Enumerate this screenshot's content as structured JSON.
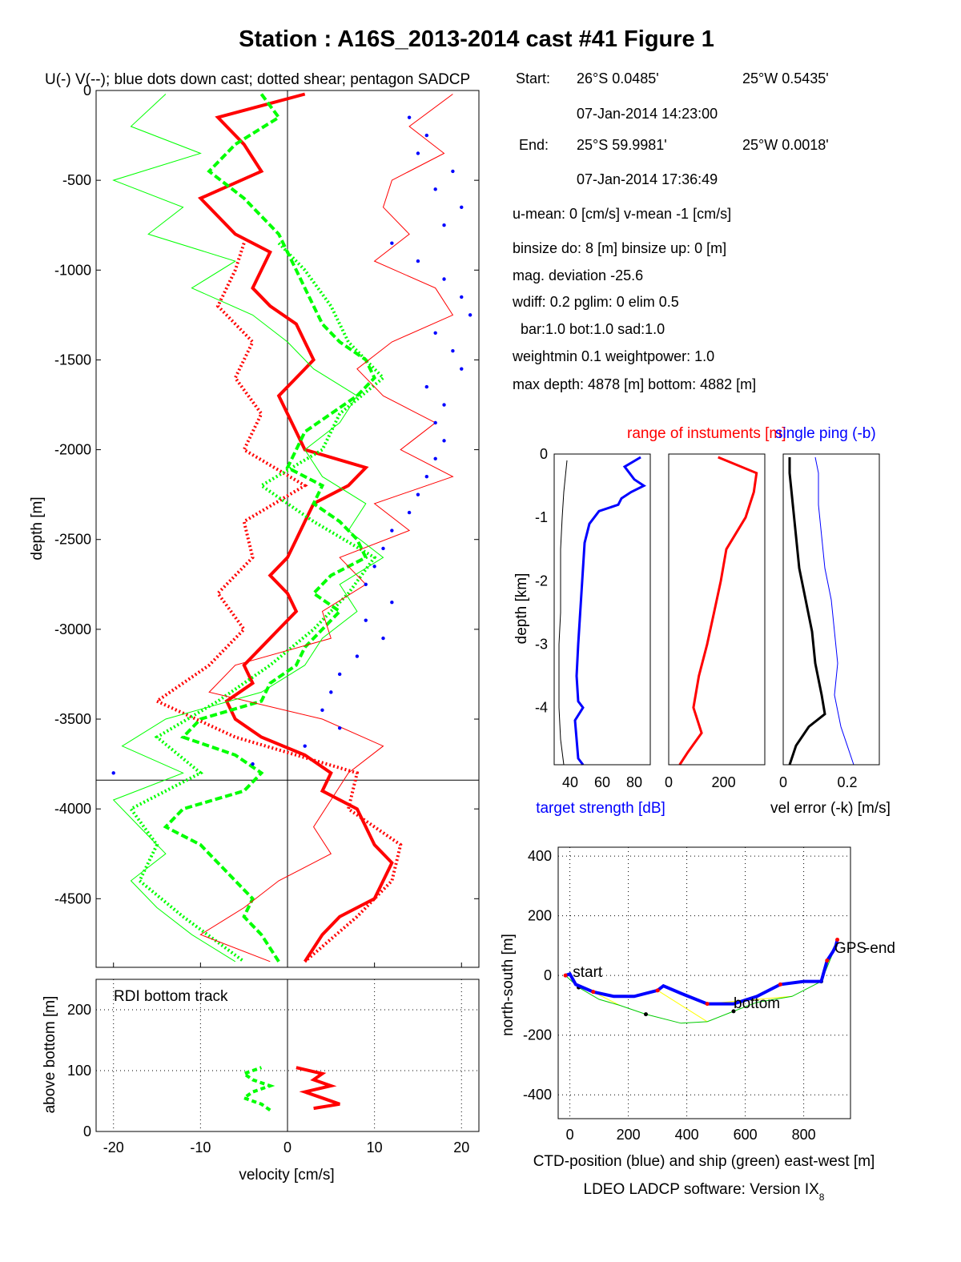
{
  "title": "Station : A16S_2013-2014 cast #41  Figure 1",
  "main_subtitle": "U(-) V(--); blue dots down cast; dotted shear; pentagon SADCP",
  "info": {
    "start_label": "Start:",
    "start_lat": "26°S  0.0485'",
    "start_lon": "25°W  0.5435'",
    "start_time": "07-Jan-2014 14:23:00",
    "end_label": "End:",
    "end_lat": "25°S 59.9981'",
    "end_lon": "25°W  0.0018'",
    "end_time": "07-Jan-2014 17:36:49",
    "line_mean": "u-mean:   0 [cm/s]    v-mean  -1 [cm/s]",
    "line_bins": "binsize do: 8 [m]  binsize up:  0 [m]",
    "line_mag": "mag. deviation -25.6",
    "line_wdiff": "wdiff: 0.2  pglim: 0  elim 0.5",
    "line_bar": "bar:1.0 bot:1.0 sad:1.0",
    "line_weight": "weightmin 0.1  weightpower: 1.0",
    "line_depth": "max depth: 4878 [m]   bottom: 4882 [m]"
  },
  "colors": {
    "u": "#ff0000",
    "v": "#00ff00",
    "downcast": "#0000ff",
    "ship": "#00cc00",
    "yellow": "#ffff00"
  },
  "chart_data": [
    {
      "type": "line",
      "panel": "velocity profile",
      "xlabel": "",
      "ylabel": "depth [m]",
      "xlim": [
        -22,
        22
      ],
      "ylim": [
        -4882,
        0
      ],
      "xticks": [
        "-20",
        "-10",
        "0",
        "10",
        "20"
      ],
      "yticks": [
        "0",
        "-500",
        "-1000",
        "-1500",
        "-2000",
        "-2500",
        "-3000",
        "-3500",
        "-4000",
        "-4500"
      ],
      "ytick_values": [
        0,
        -500,
        -1000,
        -1500,
        -2000,
        -2500,
        -3000,
        -3500,
        -4000,
        -4500
      ],
      "bottom_depth_line": -3840,
      "series": [
        {
          "key": "u",
          "color": "#ff0000",
          "depth": [
            -20,
            -150,
            -300,
            -450,
            -600,
            -700,
            -800,
            -900,
            -1000,
            -1100,
            -1200,
            -1300,
            -1400,
            -1500,
            -1600,
            -1700,
            -1800,
            -1900,
            -2000,
            -2100,
            -2200,
            -2300,
            -2400,
            -2500,
            -2600,
            -2700,
            -2800,
            -2900,
            -3000,
            -3100,
            -3200,
            -3300,
            -3400,
            -3500,
            -3600,
            -3700,
            -3800,
            -3900,
            -4000,
            -4100,
            -4200,
            -4300,
            -4400,
            -4500,
            -4600,
            -4700,
            -4850
          ],
          "values": [
            2,
            -8,
            -5,
            -3,
            -10,
            -8,
            -6,
            -2,
            -3,
            -4,
            -2,
            1,
            2,
            3,
            1,
            -1,
            0,
            1,
            2,
            9,
            7,
            3,
            2,
            1,
            0,
            -2,
            0,
            1,
            -1,
            -3,
            -5,
            -4,
            -7,
            -6,
            -3,
            2,
            5,
            4,
            8,
            9,
            10,
            12,
            11,
            10,
            6,
            4,
            2
          ]
        },
        {
          "key": "v",
          "color": "#00ff00",
          "depth": [
            -20,
            -150,
            -300,
            -450,
            -600,
            -700,
            -800,
            -900,
            -1000,
            -1100,
            -1200,
            -1300,
            -1400,
            -1500,
            -1600,
            -1700,
            -1800,
            -1900,
            -2000,
            -2100,
            -2200,
            -2300,
            -2400,
            -2500,
            -2600,
            -2700,
            -2800,
            -2900,
            -3000,
            -3100,
            -3200,
            -3300,
            -3400,
            -3500,
            -3600,
            -3700,
            -3800,
            -3900,
            -4000,
            -4100,
            -4200,
            -4300,
            -4400,
            -4500,
            -4600,
            -4700,
            -4850
          ],
          "values": [
            -3,
            -1,
            -6,
            -9,
            -5,
            -3,
            -1,
            0,
            1,
            2,
            3,
            4,
            6,
            9,
            10,
            8,
            5,
            2,
            1,
            0,
            4,
            3,
            6,
            8,
            9,
            5,
            3,
            6,
            4,
            2,
            1,
            -2,
            -3,
            -10,
            -12,
            -6,
            -3,
            -5,
            -12,
            -14,
            -10,
            -8,
            -6,
            -4,
            -5,
            -3,
            -1
          ]
        },
        {
          "key": "u_shear",
          "color": "#ff0000",
          "style": "dotted",
          "depth": [
            -850,
            -1000,
            -1200,
            -1400,
            -1600,
            -1800,
            -2000,
            -2200,
            -2400,
            -2600,
            -2800,
            -3000,
            -3200,
            -3400,
            -3600,
            -3800,
            -4000,
            -4200,
            -4400,
            -4600,
            -4850
          ],
          "values": [
            -5,
            -6,
            -8,
            -4,
            -6,
            -3,
            -5,
            2,
            -5,
            -4,
            -8,
            -5,
            -9,
            -15,
            -6,
            8,
            7,
            13,
            12,
            8,
            2
          ]
        },
        {
          "key": "v_shear",
          "color": "#00ff00",
          "style": "dotted",
          "depth": [
            -850,
            -1000,
            -1200,
            -1400,
            -1600,
            -1800,
            -2000,
            -2200,
            -2400,
            -2600,
            -2800,
            -3000,
            -3200,
            -3400,
            -3600,
            -3800,
            -4000,
            -4200,
            -4400,
            -4600,
            -4850
          ],
          "values": [
            -1,
            2,
            5,
            7,
            11,
            6,
            4,
            -3,
            3,
            10,
            7,
            3,
            -2,
            -8,
            -15,
            -10,
            -18,
            -15,
            -17,
            -12,
            -5
          ]
        },
        {
          "key": "u_thin",
          "color": "#ff0000",
          "style": "thin",
          "depth": [
            -20,
            -200,
            -350,
            -500,
            -650,
            -800,
            -950,
            -1100,
            -1250,
            -1400,
            -1550,
            -1700,
            -1850,
            -2000,
            -2150,
            -2300,
            -2450,
            -2600,
            -2750,
            -2900,
            -3050,
            -3200,
            -3350,
            -3500,
            -3650,
            -3800,
            -3950,
            -4100,
            -4250,
            -4400,
            -4550,
            -4700,
            -4850
          ],
          "values": [
            19,
            14,
            18,
            12,
            11,
            14,
            10,
            17,
            19,
            12,
            8,
            11,
            17,
            13,
            19,
            10,
            14,
            6,
            9,
            4,
            5,
            -6,
            -9,
            4,
            11,
            7,
            5,
            3,
            5,
            -1,
            -5,
            -10,
            -2
          ]
        },
        {
          "key": "v_thin",
          "color": "#00ff00",
          "style": "thin",
          "depth": [
            -20,
            -200,
            -350,
            -500,
            -650,
            -800,
            -950,
            -1100,
            -1250,
            -1400,
            -1550,
            -1700,
            -1850,
            -2000,
            -2150,
            -2300,
            -2450,
            -2600,
            -2750,
            -2900,
            -3050,
            -3200,
            -3350,
            -3500,
            -3650,
            -3800,
            -3950,
            -4100,
            -4250,
            -4400,
            -4550,
            -4700,
            -4850
          ],
          "values": [
            -14,
            -18,
            -10,
            -20,
            -12,
            -16,
            -6,
            -11,
            -4,
            0,
            3,
            8,
            6,
            2,
            4,
            9,
            7,
            11,
            6,
            8,
            4,
            2,
            -3,
            -14,
            -19,
            -12,
            -20,
            -17,
            -14,
            -18,
            -15,
            -11,
            -6
          ]
        },
        {
          "key": "downcast",
          "color": "#0000ff",
          "style": "dots",
          "depth": [
            -150,
            -250,
            -350,
            -450,
            -550,
            -650,
            -750,
            -850,
            -950,
            -1050,
            -1150,
            -1250,
            -1350,
            -1450,
            -1550,
            -1650,
            -1750,
            -1850,
            -1950,
            -2050,
            -2150,
            -2250,
            -2350,
            -2450,
            -2550,
            -2650,
            -2750,
            -2850,
            -2950,
            -3050,
            -3150,
            -3250,
            -3350,
            -3450,
            -3550,
            -3650,
            -3750,
            -3800
          ],
          "values": [
            14,
            16,
            15,
            19,
            17,
            20,
            18,
            12,
            15,
            18,
            20,
            21,
            17,
            19,
            20,
            16,
            18,
            17,
            18,
            17,
            16,
            15,
            14,
            12,
            11,
            10,
            9,
            12,
            9,
            11,
            8,
            6,
            5,
            4,
            6,
            2,
            -4,
            -20
          ]
        }
      ]
    },
    {
      "type": "line",
      "panel": "bottom track",
      "annotation": "RDI bottom track",
      "xlabel": "velocity [cm/s]",
      "ylabel": "above bottom [m]",
      "xlim": [
        -22,
        22
      ],
      "ylim": [
        0,
        250
      ],
      "xticks": [
        "-20",
        "-10",
        "0",
        "10",
        "20"
      ],
      "yticks": [
        "0",
        "100",
        "200"
      ],
      "ytick_values": [
        0,
        100,
        200
      ],
      "series": [
        {
          "key": "u",
          "color": "#ff0000",
          "height": [
            38,
            45,
            55,
            65,
            75,
            85,
            95,
            105
          ],
          "values": [
            3,
            6,
            4,
            2,
            5,
            3,
            4,
            1
          ]
        },
        {
          "key": "v",
          "color": "#00ff00",
          "height": [
            35,
            45,
            55,
            65,
            75,
            85,
            95,
            105
          ],
          "values": [
            -2,
            -3,
            -5,
            -4,
            -2,
            -4,
            -5,
            -3
          ]
        }
      ]
    },
    {
      "type": "line",
      "panel": "target strength",
      "xlabel": "target strength [dB]",
      "ylabel": "depth [km]",
      "xlim": [
        30,
        90
      ],
      "ylim": [
        -4.9,
        0
      ],
      "xticks": [
        "40",
        "60",
        "80"
      ],
      "yticks": [
        "0",
        "-1",
        "-2",
        "-3",
        "-4"
      ],
      "ytick_values": [
        0,
        -1,
        -2,
        -3,
        -4
      ],
      "series": [
        {
          "key": "target",
          "color": "#0000ff",
          "depth": [
            -0.05,
            -0.2,
            -0.4,
            -0.5,
            -0.6,
            -0.7,
            -0.8,
            -0.9,
            -1.1,
            -1.4,
            -1.8,
            -2.2,
            -2.6,
            -3.0,
            -3.5,
            -3.9,
            -4.0,
            -4.2,
            -4.5,
            -4.8,
            -4.9
          ],
          "values": [
            84,
            74,
            80,
            86,
            78,
            72,
            70,
            58,
            52,
            49,
            48,
            47,
            46,
            45,
            44,
            45,
            48,
            43,
            44,
            45,
            48
          ]
        },
        {
          "key": "gray",
          "color": "#000000",
          "depth": [
            -0.1,
            -0.6,
            -1.0,
            -1.5,
            -2.0,
            -2.5,
            -3.0,
            -3.5,
            -4.0,
            -4.5,
            -4.9
          ],
          "values": [
            38,
            36,
            35,
            34,
            34,
            34,
            33,
            33,
            33,
            34,
            36
          ]
        }
      ]
    },
    {
      "type": "line",
      "panel": "range",
      "title": "range of instuments [m]",
      "xlim": [
        0,
        350
      ],
      "ylim": [
        -4.9,
        0
      ],
      "xticks": [
        "0",
        "200"
      ],
      "series": [
        {
          "key": "range",
          "color": "#ff0000",
          "depth": [
            -0.05,
            -0.3,
            -0.6,
            -1.0,
            -1.5,
            -2.0,
            -2.5,
            -3.0,
            -3.5,
            -4.0,
            -4.4,
            -4.7,
            -4.9
          ],
          "values": [
            180,
            320,
            310,
            280,
            210,
            190,
            165,
            140,
            110,
            90,
            120,
            70,
            40
          ]
        }
      ]
    },
    {
      "type": "line",
      "panel": "vel error",
      "title": "single ping (-b)",
      "xlabel": "vel error (-k) [m/s]",
      "xlim": [
        0,
        0.3
      ],
      "ylim": [
        -4.9,
        0
      ],
      "xticks": [
        "0",
        "0.2"
      ],
      "series": [
        {
          "key": "k",
          "color": "#000000",
          "depth": [
            -0.05,
            -0.3,
            -0.8,
            -1.3,
            -1.8,
            -2.3,
            -2.8,
            -3.3,
            -3.8,
            -4.1,
            -4.3,
            -4.6,
            -4.9
          ],
          "values": [
            0.02,
            0.02,
            0.03,
            0.04,
            0.05,
            0.07,
            0.09,
            0.1,
            0.12,
            0.13,
            0.08,
            0.04,
            0.02
          ]
        },
        {
          "key": "b",
          "color": "#0000ff",
          "depth": [
            -0.05,
            -0.3,
            -0.8,
            -1.3,
            -1.8,
            -2.3,
            -2.8,
            -3.3,
            -3.8,
            -4.3,
            -4.6,
            -4.9
          ],
          "values": [
            0.1,
            0.11,
            0.11,
            0.12,
            0.13,
            0.15,
            0.16,
            0.17,
            0.16,
            0.18,
            0.2,
            0.22
          ]
        }
      ]
    },
    {
      "type": "line",
      "panel": "position",
      "xlabel": "CTD-position (blue) and ship (green) east-west [m]",
      "ylabel": "north-south [m]",
      "xlim": [
        -40,
        960
      ],
      "ylim": [
        -480,
        430
      ],
      "xticks": [
        "0",
        "200",
        "400",
        "600",
        "800"
      ],
      "xtick_values": [
        0,
        200,
        400,
        600,
        800
      ],
      "yticks": [
        "400",
        "200",
        "0",
        "-200",
        "-400"
      ],
      "ytick_values": [
        400,
        200,
        0,
        -200,
        -400
      ],
      "annotations": [
        "start",
        "bottom",
        "GPS",
        "end"
      ],
      "series": [
        {
          "key": "ctd",
          "color": "#0000ff",
          "x": [
            -15,
            0,
            20,
            80,
            150,
            220,
            300,
            320,
            380,
            470,
            560,
            640,
            720,
            800,
            860,
            880,
            900,
            910,
            915
          ],
          "y": [
            0,
            5,
            -30,
            -55,
            -70,
            -70,
            -50,
            -35,
            -60,
            -95,
            -95,
            -70,
            -30,
            -20,
            -20,
            50,
            80,
            100,
            120
          ]
        },
        {
          "key": "ship",
          "color": "#00cc00",
          "x": [
            -15,
            30,
            100,
            170,
            260,
            380,
            470,
            560,
            640,
            760,
            860,
            910
          ],
          "y": [
            0,
            -40,
            -80,
            -100,
            -130,
            -160,
            -155,
            -120,
            -90,
            -70,
            -20,
            100
          ]
        }
      ]
    }
  ],
  "footer": {
    "software": "LDEO LADCP software: Version IX",
    "software_sub": "8"
  }
}
